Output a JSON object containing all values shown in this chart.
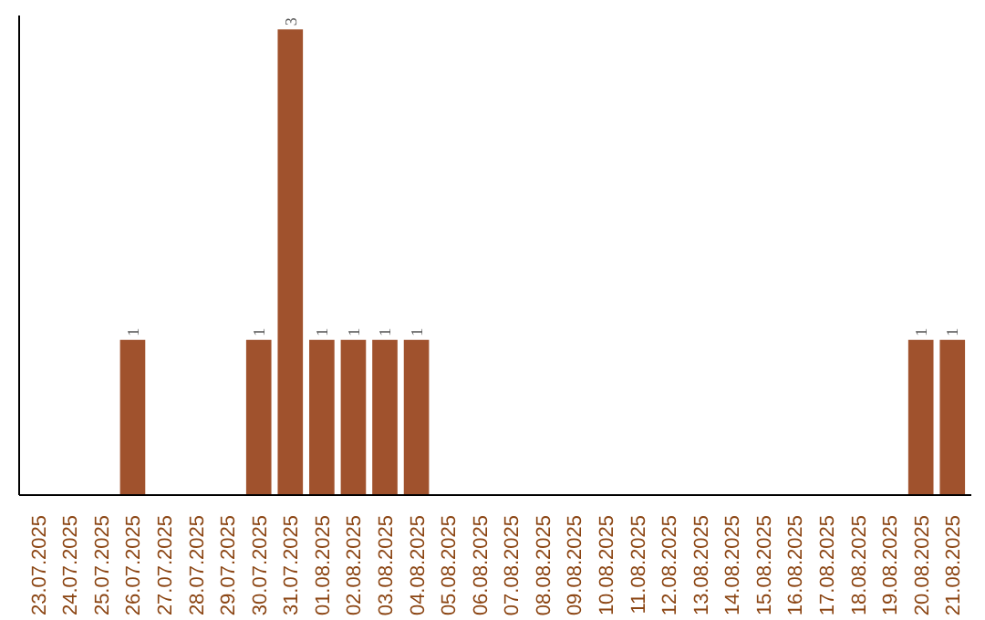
{
  "chart_data": {
    "type": "bar",
    "categories": [
      "23.07.2025",
      "24.07.2025",
      "25.07.2025",
      "26.07.2025",
      "27.07.2025",
      "28.07.2025",
      "29.07.2025",
      "30.07.2025",
      "31.07.2025",
      "01.08.2025",
      "02.08.2025",
      "03.08.2025",
      "04.08.2025",
      "05.08.2025",
      "06.08.2025",
      "07.08.2025",
      "08.08.2025",
      "09.08.2025",
      "10.08.2025",
      "11.08.2025",
      "12.08.2025",
      "13.08.2025",
      "14.08.2025",
      "15.08.2025",
      "16.08.2025",
      "17.08.2025",
      "18.08.2025",
      "19.08.2025",
      "20.08.2025",
      "21.08.2025"
    ],
    "values": [
      0,
      0,
      0,
      1,
      0,
      0,
      0,
      1,
      3,
      1,
      1,
      1,
      1,
      0,
      0,
      0,
      0,
      0,
      0,
      0,
      0,
      0,
      0,
      0,
      0,
      0,
      0,
      0,
      1,
      1
    ],
    "value_labels": [
      null,
      null,
      null,
      "1",
      null,
      null,
      null,
      "1",
      "3",
      "1",
      "1",
      "1",
      "1",
      null,
      null,
      null,
      null,
      null,
      null,
      null,
      null,
      null,
      null,
      null,
      null,
      null,
      null,
      null,
      "1",
      "1"
    ],
    "color": "#a0522d",
    "tick_labels": "x",
    "grid": false
  }
}
